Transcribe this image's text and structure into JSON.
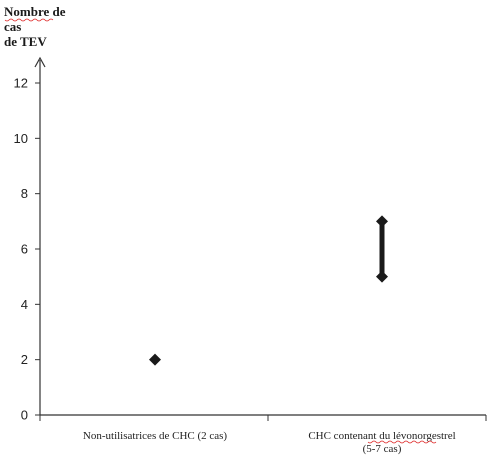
{
  "chart_data": {
    "type": "scatter",
    "ylabel": "Nombre de cas de TEV",
    "ylabel_lines": [
      "Nombre de cas",
      "de TEV"
    ],
    "xlabel": "",
    "ylim": [
      0,
      12
    ],
    "yticks": [
      0,
      2,
      4,
      6,
      8,
      10,
      12
    ],
    "grid": false,
    "legend": "none",
    "categories": [
      [
        "Non-utilisatrices de CHC (2 cas)"
      ],
      [
        "CHC contenant du lévonorgestrel",
        "(5-7 cas)"
      ]
    ],
    "points": [
      {
        "category_index": 0,
        "y": 2
      },
      {
        "category_index": 1,
        "y_low": 5,
        "y_high": 7
      }
    ],
    "colors": {
      "mark": "#1a1a1a",
      "axis": "#333333"
    }
  }
}
